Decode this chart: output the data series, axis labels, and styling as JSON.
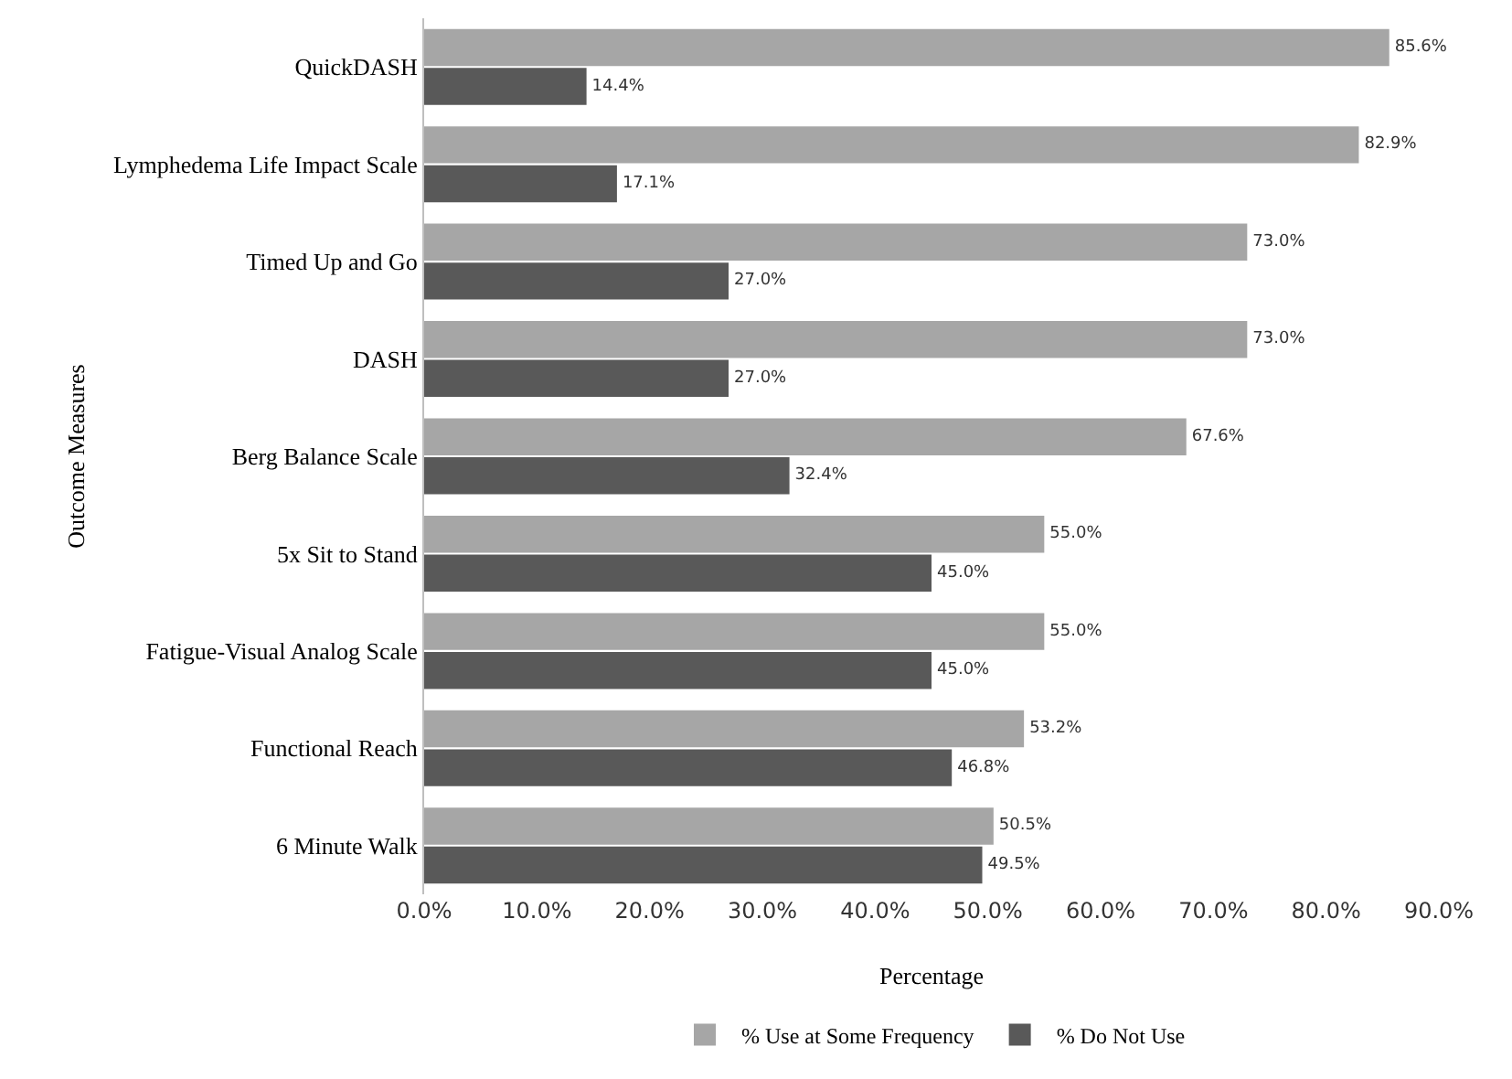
{
  "chart_data": {
    "type": "bar",
    "orientation": "horizontal",
    "xlabel": "Percentage",
    "ylabel": "Outcome Measures",
    "categories": [
      "QuickDASH",
      "Lymphedema Life Impact Scale",
      "Timed Up and Go",
      "DASH",
      "Berg Balance Scale",
      "5x Sit to Stand",
      "Fatigue-Visual Analog Scale",
      "Functional Reach",
      "6 Minute Walk"
    ],
    "series": [
      {
        "name": "% Use at Some Frequency",
        "color": "#a6a6a6",
        "values": [
          85.6,
          82.9,
          73.0,
          73.0,
          67.6,
          55.0,
          55.0,
          53.2,
          50.5
        ],
        "value_labels": [
          "85.6%",
          "82.9%",
          "73.0%",
          "73.0%",
          "67.6%",
          "55.0%",
          "55.0%",
          "53.2%",
          "50.5%"
        ]
      },
      {
        "name": "% Do Not Use",
        "color": "#595959",
        "values": [
          14.4,
          17.1,
          27.0,
          27.0,
          32.4,
          45.0,
          45.0,
          46.8,
          49.5
        ],
        "value_labels": [
          "14.4%",
          "17.1%",
          "27.0%",
          "27.0%",
          "32.4%",
          "45.0%",
          "45.0%",
          "46.8%",
          "49.5%"
        ]
      }
    ],
    "xlim": [
      0,
      90
    ],
    "xticks": [
      {
        "value": 0,
        "label": "0.0%"
      },
      {
        "value": 10,
        "label": "10.0%"
      },
      {
        "value": 20,
        "label": "20.0%"
      },
      {
        "value": 30,
        "label": "30.0%"
      },
      {
        "value": 40,
        "label": "40.0%"
      },
      {
        "value": 50,
        "label": "50.0%"
      },
      {
        "value": 60,
        "label": "60.0%"
      },
      {
        "value": 70,
        "label": "70.0%"
      },
      {
        "value": 80,
        "label": "80.0%"
      },
      {
        "value": 90,
        "label": "90.0%"
      }
    ],
    "grid": false,
    "legend": "bottom"
  }
}
